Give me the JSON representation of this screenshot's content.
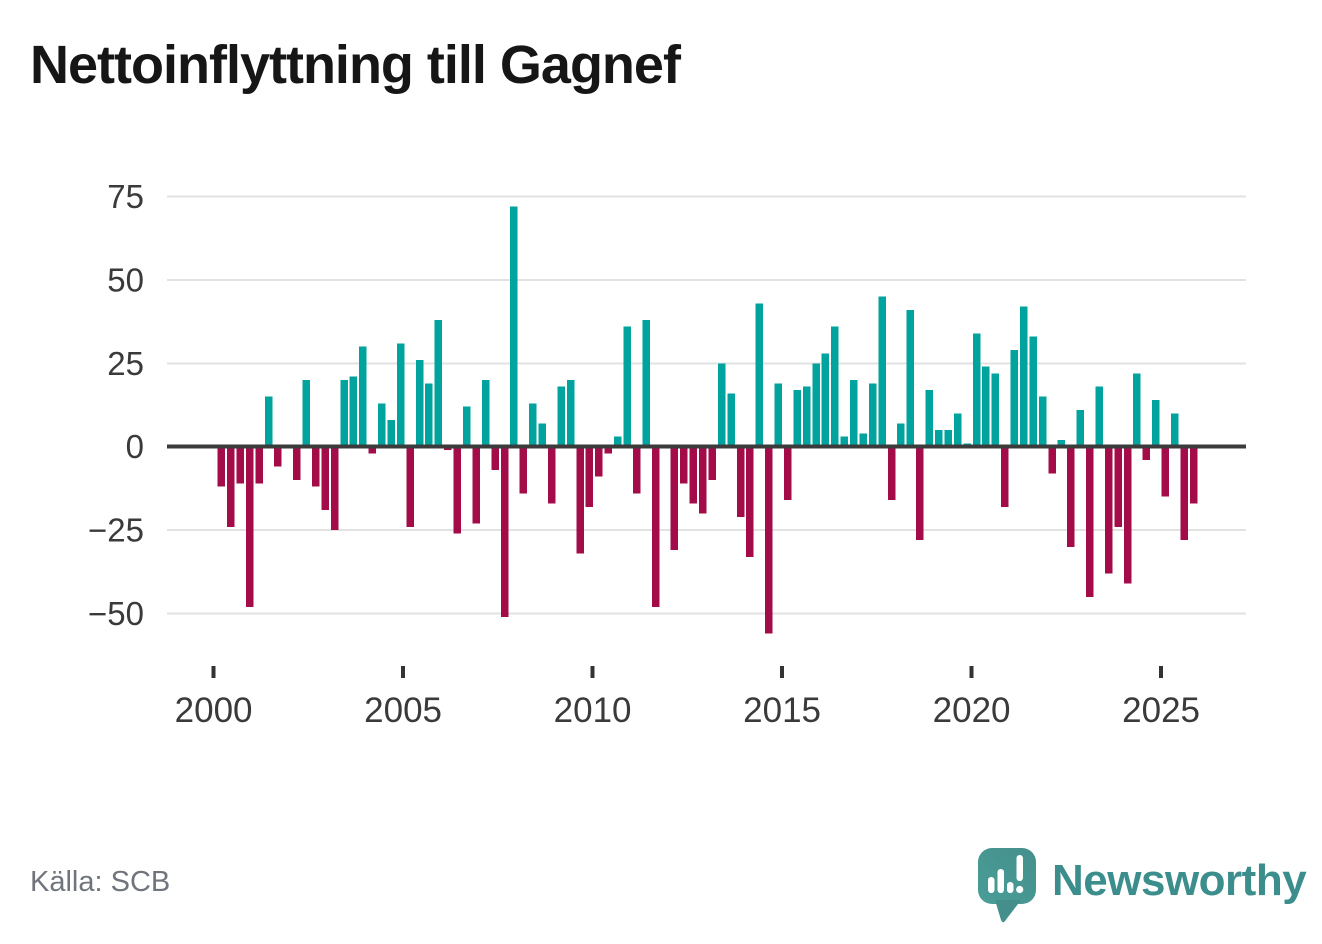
{
  "title": "Nettoinflyttning till Gagnef",
  "source": "Källa: SCB",
  "brand": {
    "name": "Newsworthy"
  },
  "colors": {
    "positive": "#00a39e",
    "negative": "#a30c49",
    "grid": "#e2e2e2",
    "zero_line": "#3b3b3b",
    "axis_text": "#3a3a3a",
    "title_text": "#161616",
    "source_text": "#70747c",
    "brand_teal": "#3c8e8d",
    "logo_bubble": "#4a9a96"
  },
  "chart_data": {
    "type": "bar",
    "title": "Nettoinflyttning till Gagnef",
    "frequency": "quarterly",
    "start": "2000-Q1",
    "end": "2025-Q4",
    "values": [
      -12,
      -24,
      -11,
      -48,
      -11,
      15,
      -6,
      0,
      -10,
      20,
      -12,
      -19,
      -25,
      20,
      21,
      30,
      -2,
      13,
      8,
      31,
      -24,
      26,
      19,
      38,
      -1,
      -26,
      12,
      -23,
      20,
      -7,
      -51,
      72,
      -14,
      13,
      7,
      -17,
      18,
      20,
      -32,
      -18,
      -9,
      -2,
      3,
      36,
      -14,
      38,
      -48,
      0,
      -31,
      -11,
      -17,
      -20,
      -10,
      25,
      16,
      -21,
      -33,
      43,
      -56,
      19,
      -16,
      17,
      18,
      25,
      28,
      36,
      3,
      20,
      4,
      19,
      45,
      -16,
      7,
      41,
      -28,
      17,
      5,
      5,
      10,
      1,
      34,
      24,
      22,
      -18,
      29,
      42,
      33,
      15,
      -8,
      2,
      -30,
      11,
      -45,
      18,
      -38,
      -24,
      -41,
      22,
      -4,
      14,
      -15,
      10,
      -28,
      -17
    ],
    "x_tick_labels": [
      "2000",
      "2005",
      "2010",
      "2015",
      "2020",
      "2025"
    ],
    "y_ticks": [
      75,
      50,
      25,
      0,
      -25,
      -50
    ],
    "y_tick_labels": [
      "75",
      "50",
      "25",
      "0",
      "−25",
      "−50"
    ],
    "ylim": [
      -62,
      78
    ],
    "grid": "horizontal-only",
    "legend": "none",
    "bar_color_rule": "positive=teal, negative=dark-red"
  }
}
